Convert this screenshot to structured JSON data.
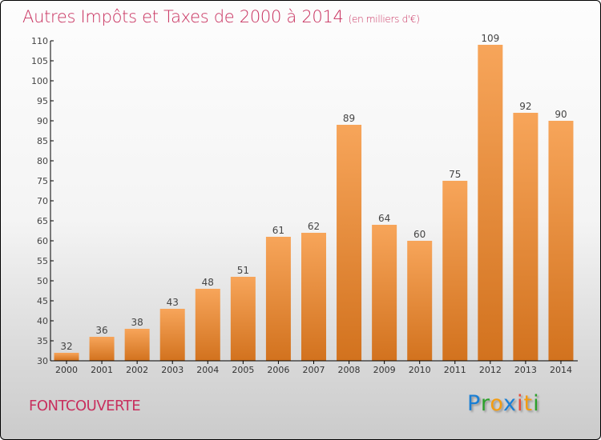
{
  "chart_data": {
    "type": "bar",
    "title": "Autres Impôts et Taxes de 2000 à 2014",
    "unit": "(en milliers d'€)",
    "categories": [
      "2000",
      "2001",
      "2002",
      "2003",
      "2004",
      "2005",
      "2006",
      "2007",
      "2008",
      "2009",
      "2010",
      "2011",
      "2012",
      "2013",
      "2014"
    ],
    "values": [
      32,
      36,
      38,
      43,
      48,
      51,
      61,
      62,
      89,
      64,
      60,
      75,
      109,
      92,
      90
    ],
    "ylim": [
      30,
      110
    ],
    "yticks": [
      30,
      35,
      40,
      45,
      50,
      55,
      60,
      65,
      70,
      75,
      80,
      85,
      90,
      95,
      100,
      105,
      110
    ],
    "xlabel": "",
    "ylabel": "",
    "grid": false,
    "bar_color": "#f0943f"
  },
  "commune": "FONTCOUVERTE",
  "logo": {
    "text": "Proxiti",
    "letters": [
      [
        "P",
        "#1a7fd4"
      ],
      [
        "r",
        "#2ca02c"
      ],
      [
        "o",
        "#f39c12"
      ],
      [
        "x",
        "#1a7fd4"
      ],
      [
        "i",
        "#e74c3c"
      ],
      [
        "t",
        "#f39c12"
      ],
      [
        "i",
        "#2ca02c"
      ]
    ]
  }
}
